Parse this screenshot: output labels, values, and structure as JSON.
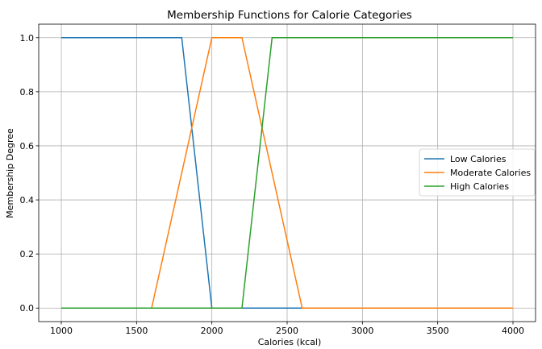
{
  "chart_data": {
    "type": "line",
    "title": "Membership Functions for Calorie Categories",
    "xlabel": "Calories (kcal)",
    "ylabel": "Membership Degree",
    "xlim": [
      850,
      4150
    ],
    "ylim": [
      -0.05,
      1.05
    ],
    "xticks": [
      1000,
      1500,
      2000,
      2500,
      3000,
      3500,
      4000
    ],
    "yticks": [
      0.0,
      0.2,
      0.4,
      0.6,
      0.8,
      1.0
    ],
    "ytick_labels": [
      "0.0",
      "0.2",
      "0.4",
      "0.6",
      "0.8",
      "1.0"
    ],
    "grid": true,
    "legend_position": "center-right",
    "series": [
      {
        "name": "Low Calories",
        "color": "#1f77b4",
        "x": [
          1000,
          1800,
          2000,
          4000
        ],
        "y": [
          1.0,
          1.0,
          0.0,
          0.0
        ]
      },
      {
        "name": "Moderate Calories",
        "color": "#ff7f0e",
        "x": [
          1000,
          1600,
          2000,
          2200,
          2600,
          4000
        ],
        "y": [
          0.0,
          0.0,
          1.0,
          1.0,
          0.0,
          0.0
        ]
      },
      {
        "name": "High Calories",
        "color": "#2ca02c",
        "x": [
          1000,
          2200,
          2400,
          4000
        ],
        "y": [
          0.0,
          0.0,
          1.0,
          1.0
        ]
      }
    ]
  }
}
